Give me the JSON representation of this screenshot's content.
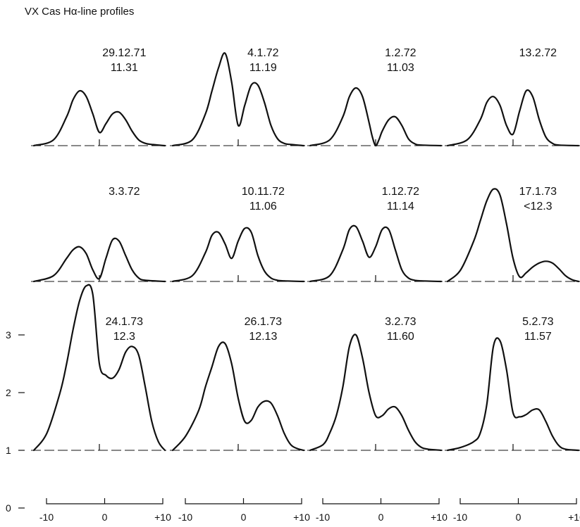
{
  "chart_data": {
    "type": "line",
    "title": "VX Cas Hα-line profiles",
    "xlabel": "",
    "ylabel": "",
    "x_ticks": [
      "-10",
      "0",
      "+10"
    ],
    "y_ticks": [
      "0",
      "1",
      "2",
      "3"
    ],
    "xlim": [
      -10,
      10
    ],
    "ylim": [
      0,
      3.8
    ],
    "grid": false,
    "panels": [
      {
        "date": "29.12.71",
        "mag": "11.31",
        "row": 0,
        "col": 0,
        "x": [
          -10,
          -7,
          -5,
          -4,
          -3,
          -2,
          -1,
          0,
          1,
          2,
          3,
          4,
          5,
          6,
          7,
          8,
          10
        ],
        "y": [
          1.0,
          1.1,
          1.5,
          1.8,
          1.95,
          1.85,
          1.55,
          1.23,
          1.38,
          1.55,
          1.58,
          1.45,
          1.25,
          1.1,
          1.04,
          1.02,
          1.0
        ]
      },
      {
        "date": "4.1.72",
        "mag": "11.19",
        "row": 0,
        "col": 1,
        "x": [
          -10,
          -7,
          -5,
          -4,
          -3,
          -2,
          -1,
          0,
          1,
          2,
          3,
          4,
          5,
          6,
          7,
          8,
          10
        ],
        "y": [
          1.0,
          1.1,
          1.55,
          1.95,
          2.35,
          2.6,
          2.1,
          1.35,
          1.7,
          2.05,
          2.05,
          1.75,
          1.35,
          1.12,
          1.04,
          1.02,
          1.0
        ]
      },
      {
        "date": "1.2.72",
        "mag": "11.03",
        "row": 0,
        "col": 2,
        "x": [
          -10,
          -7,
          -5,
          -4,
          -3,
          -2,
          -1,
          -0.5,
          0,
          0.5,
          1,
          2,
          3,
          4,
          5,
          6,
          7,
          10
        ],
        "y": [
          1.0,
          1.1,
          1.5,
          1.85,
          2.0,
          1.85,
          1.4,
          1.15,
          1.0,
          1.1,
          1.25,
          1.45,
          1.5,
          1.35,
          1.12,
          1.03,
          1.01,
          1.0
        ]
      },
      {
        "date": "13.2.72",
        "mag": "",
        "row": 0,
        "col": 3,
        "x": [
          -10,
          -7,
          -5,
          -4,
          -3,
          -2,
          -1,
          0,
          1,
          2,
          3,
          4,
          5,
          6,
          7,
          10
        ],
        "y": [
          1.0,
          1.1,
          1.45,
          1.75,
          1.85,
          1.7,
          1.35,
          1.2,
          1.6,
          1.95,
          1.85,
          1.45,
          1.15,
          1.04,
          1.01,
          1.0
        ]
      },
      {
        "date": "3.3.72",
        "mag": "",
        "row": 1,
        "col": 0,
        "x": [
          -10,
          -7,
          -5,
          -4,
          -3,
          -2,
          -1,
          0,
          1,
          2,
          3,
          4,
          5,
          6,
          7,
          10
        ],
        "y": [
          1.0,
          1.1,
          1.4,
          1.55,
          1.6,
          1.48,
          1.2,
          1.05,
          1.4,
          1.72,
          1.7,
          1.45,
          1.2,
          1.06,
          1.02,
          1.0
        ]
      },
      {
        "date": "10.11.72",
        "mag": "11.06",
        "row": 1,
        "col": 1,
        "x": [
          -10,
          -7,
          -5,
          -4,
          -3,
          -2,
          -1,
          0,
          1,
          2,
          3,
          4,
          5,
          6,
          7,
          10
        ],
        "y": [
          1.0,
          1.1,
          1.5,
          1.8,
          1.85,
          1.65,
          1.4,
          1.7,
          1.92,
          1.85,
          1.45,
          1.18,
          1.06,
          1.02,
          1.01,
          1.0
        ]
      },
      {
        "date": "1.12.72",
        "mag": "11.14",
        "row": 1,
        "col": 2,
        "x": [
          -10,
          -7,
          -5,
          -4,
          -3,
          -2,
          -1,
          0,
          1,
          2,
          3,
          4,
          5,
          6,
          7,
          10
        ],
        "y": [
          1.0,
          1.1,
          1.55,
          1.9,
          1.95,
          1.7,
          1.42,
          1.6,
          1.9,
          1.9,
          1.55,
          1.2,
          1.06,
          1.02,
          1.01,
          1.0
        ]
      },
      {
        "date": "17.1.73",
        "mag": "<12.3",
        "row": 1,
        "col": 3,
        "x": [
          -10,
          -8,
          -6,
          -5,
          -4,
          -3,
          -2,
          -1,
          0,
          1,
          2,
          3,
          4,
          5,
          6,
          7,
          8,
          9,
          10
        ],
        "y": [
          1.0,
          1.2,
          1.7,
          2.05,
          2.4,
          2.6,
          2.5,
          2.0,
          1.4,
          1.08,
          1.15,
          1.25,
          1.32,
          1.35,
          1.32,
          1.22,
          1.1,
          1.03,
          1.0
        ]
      },
      {
        "date": "24.1.73",
        "mag": "12.3",
        "row": 2,
        "col": 0,
        "x": [
          -10,
          -8,
          -6,
          -5,
          -4,
          -3,
          -2,
          -1,
          0,
          1,
          2,
          3,
          4,
          5,
          6,
          7,
          8,
          9,
          10
        ],
        "y": [
          1.0,
          1.3,
          2.0,
          2.5,
          3.1,
          3.6,
          3.85,
          3.7,
          2.5,
          2.3,
          2.25,
          2.4,
          2.7,
          2.8,
          2.65,
          2.1,
          1.5,
          1.15,
          1.0
        ]
      },
      {
        "date": "26.1.73",
        "mag": "12.13",
        "row": 2,
        "col": 1,
        "x": [
          -10,
          -8,
          -6,
          -5,
          -4,
          -3,
          -2,
          -1,
          0,
          1,
          2,
          3,
          4,
          5,
          6,
          7,
          8,
          9,
          10
        ],
        "y": [
          1.0,
          1.25,
          1.7,
          2.1,
          2.45,
          2.8,
          2.85,
          2.5,
          1.9,
          1.5,
          1.52,
          1.75,
          1.85,
          1.82,
          1.6,
          1.3,
          1.1,
          1.03,
          1.0
        ]
      },
      {
        "date": "3.2.73",
        "mag": "11.60",
        "row": 2,
        "col": 2,
        "x": [
          -10,
          -8,
          -7,
          -6,
          -5,
          -4,
          -3,
          -2,
          -1,
          0,
          1,
          2,
          3,
          4,
          5,
          6,
          7,
          8,
          10
        ],
        "y": [
          1.0,
          1.1,
          1.3,
          1.6,
          2.1,
          2.8,
          3.0,
          2.6,
          2.0,
          1.6,
          1.6,
          1.72,
          1.75,
          1.6,
          1.35,
          1.15,
          1.05,
          1.02,
          1.0
        ]
      },
      {
        "date": "5.2.73",
        "mag": "11.57",
        "row": 2,
        "col": 3,
        "x": [
          -10,
          -8,
          -6,
          -5,
          -4,
          -3,
          -2,
          -1,
          0,
          1,
          2,
          3,
          4,
          5,
          6,
          7,
          8,
          10
        ],
        "y": [
          1.0,
          1.05,
          1.15,
          1.3,
          1.8,
          2.8,
          2.9,
          2.4,
          1.65,
          1.58,
          1.62,
          1.7,
          1.7,
          1.5,
          1.25,
          1.08,
          1.02,
          1.0
        ]
      }
    ]
  }
}
